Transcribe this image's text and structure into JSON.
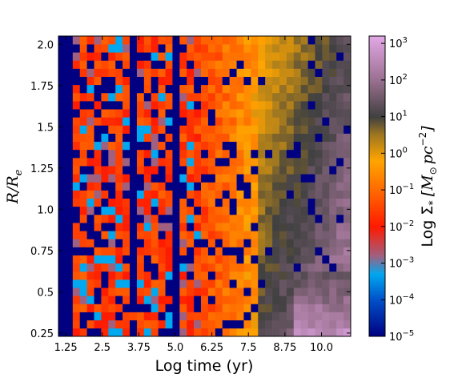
{
  "chart_data": {
    "type": "heatmap",
    "title": "",
    "xlabel": "Log time (yr)",
    "ylabel": "R/R_e",
    "colorbar_label": "Log Σ_* [M_⊙ pc^-2]",
    "x_range": [
      1.0,
      11.0
    ],
    "y_range": [
      0.23,
      2.05
    ],
    "x_ticks": [
      "1.25",
      "2.5",
      "3.75",
      "5.0",
      "6.25",
      "7.5",
      "8.75",
      "10.0"
    ],
    "y_ticks": [
      "0.25",
      "0.5",
      "0.75",
      "1.0",
      "1.25",
      "1.5",
      "1.75",
      "2.0"
    ],
    "colorbar_ticks": [
      "10^-5",
      "10^-4",
      "10^-3",
      "10^-2",
      "10^-1",
      "10^0",
      "10^1",
      "10^2",
      "10^3"
    ],
    "colorbar_range_log10": [
      -5,
      3.2
    ],
    "colormap": [
      {
        "v": -5.0,
        "color": "#000080"
      },
      {
        "v": -4.0,
        "color": "#0050c8"
      },
      {
        "v": -3.3,
        "color": "#00a8f0"
      },
      {
        "v": -2.8,
        "color": "#a06080"
      },
      {
        "v": -2.0,
        "color": "#ff1a00"
      },
      {
        "v": -1.0,
        "color": "#ff6a00"
      },
      {
        "v": -0.2,
        "color": "#ffa500"
      },
      {
        "v": 0.5,
        "color": "#a07820"
      },
      {
        "v": 1.0,
        "color": "#404040"
      },
      {
        "v": 2.0,
        "color": "#9a7090"
      },
      {
        "v": 3.2,
        "color": "#e2a8e6"
      }
    ],
    "x_bins": 41,
    "y_bins": 37,
    "grid": false
  },
  "labels": {
    "xlabel_text": "Log time (yr)",
    "ylabel_main": "R/R",
    "ylabel_sub": "e",
    "cb_main": "Log Σ",
    "cb_sub1": "*",
    "cb_unit": "[M",
    "cb_sub2": "⊙",
    "cb_unit2": "pc",
    "cb_sup": "−2",
    "cb_close": "]"
  }
}
